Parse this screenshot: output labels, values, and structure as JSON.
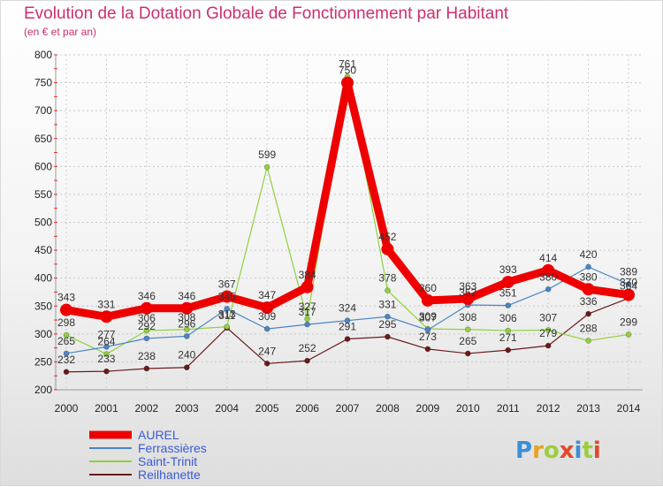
{
  "chart_data": {
    "type": "line",
    "title": "Evolution de la Dotation Globale de Fonctionnement par Habitant",
    "subtitle": "(en € et par an)",
    "xlabel": "",
    "ylabel": "",
    "ylim": [
      200,
      800
    ],
    "ytick_step": 50,
    "grid": true,
    "legend_position": "bottom-left",
    "categories": [
      "2000",
      "2001",
      "2002",
      "2003",
      "2004",
      "2005",
      "2006",
      "2007",
      "2008",
      "2009",
      "2010",
      "2011",
      "2012",
      "2013",
      "2014"
    ],
    "series": [
      {
        "name": "AUREL",
        "color": "#ee0000",
        "values": [
          343,
          331,
          346,
          346,
          367,
          347,
          384,
          750,
          452,
          360,
          363,
          393,
          414,
          380,
          370
        ]
      },
      {
        "name": "Ferrassières",
        "color": "#4a86c6",
        "values": [
          265,
          277,
          292,
          296,
          345,
          309,
          317,
          324,
          331,
          307,
          352,
          351,
          380,
          420,
          389
        ]
      },
      {
        "name": "Saint-Trinit",
        "color": "#8fd13d",
        "values": [
          298,
          264,
          306,
          308,
          313,
          599,
          327,
          761,
          378,
          309,
          308,
          306,
          307,
          288,
          299
        ]
      },
      {
        "name": "Reilhanette",
        "color": "#6b1a1a",
        "values": [
          232,
          233,
          238,
          240,
          311,
          247,
          252,
          291,
          295,
          273,
          265,
          271,
          279,
          336,
          364
        ]
      }
    ]
  },
  "watermark": "Proxiti"
}
